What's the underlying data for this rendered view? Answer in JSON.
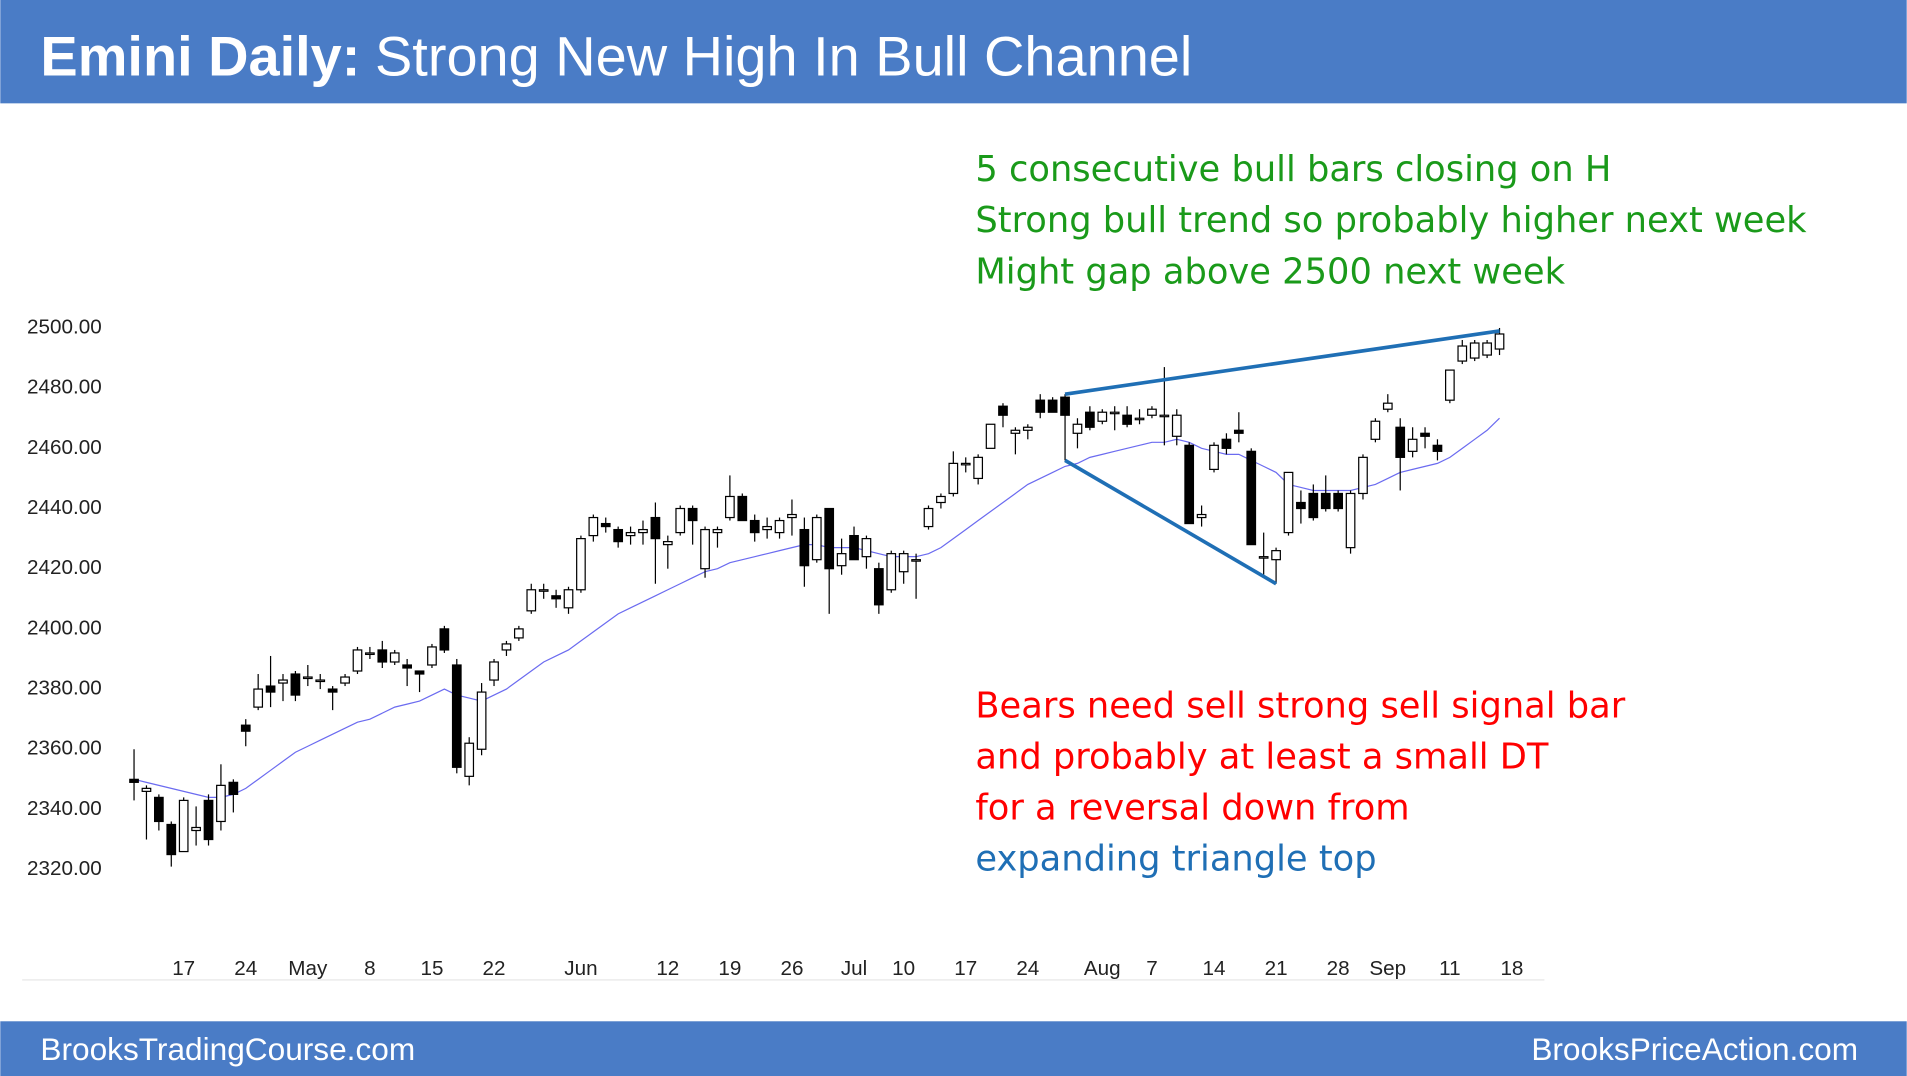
{
  "chart_data": {
    "type": "candlestick",
    "title": "Emini Daily:",
    "subtitle": "Strong New High In Bull Channel",
    "footer_left": "BrooksTradingCourse.com",
    "footer_right": "BrooksPriceAction.com",
    "notes_bull": {
      "color": "#1a9a1a",
      "lines": [
        "5 consecutive bull bars closing on H",
        "Strong bull trend so probably higher next week",
        "Might gap above 2500 next week"
      ]
    },
    "notes_bear": {
      "color": "#ff0000",
      "lines": [
        "Bears need sell strong sell signal bar",
        "and probably at least a small DT",
        "for a reversal down from"
      ]
    },
    "pattern_label": {
      "color": "#1f6fb5",
      "text": "expanding triangle top"
    },
    "ylim": [
      2310,
      2510
    ],
    "yticks": [
      {
        "value": 2320,
        "label": "2320.00"
      },
      {
        "value": 2340,
        "label": "2340.00"
      },
      {
        "value": 2360,
        "label": "2360.00"
      },
      {
        "value": 2380,
        "label": "2380.00"
      },
      {
        "value": 2400,
        "label": "2400.00"
      },
      {
        "value": 2420,
        "label": "2420.00"
      },
      {
        "value": 2440,
        "label": "2440.00"
      },
      {
        "value": 2460,
        "label": "2460.00"
      },
      {
        "value": 2480,
        "label": "2480.00"
      },
      {
        "value": 2500,
        "label": "2500.00"
      }
    ],
    "categories": [
      null,
      null,
      null,
      null,
      "17",
      null,
      null,
      null,
      null,
      "24",
      null,
      null,
      null,
      null,
      "May",
      null,
      null,
      null,
      null,
      "8",
      null,
      null,
      null,
      null,
      "15",
      null,
      null,
      null,
      null,
      "22",
      null,
      null,
      null,
      null,
      null,
      null,
      "Jun",
      null,
      null,
      null,
      null,
      null,
      null,
      "12",
      null,
      null,
      null,
      null,
      "19",
      null,
      null,
      null,
      null,
      "26",
      null,
      null,
      null,
      null,
      "Jul",
      null,
      null,
      null,
      "10",
      null,
      null,
      null,
      null,
      "17",
      null,
      null,
      null,
      null,
      "24",
      null,
      null,
      null,
      null,
      null,
      "Aug",
      null,
      null,
      null,
      "7",
      null,
      null,
      null,
      null,
      "14",
      null,
      null,
      null,
      null,
      "21",
      null,
      null,
      null,
      null,
      "28",
      null,
      null,
      null,
      "Sep",
      null,
      null,
      null,
      null,
      "11",
      null,
      null,
      null,
      null,
      "18"
    ],
    "open": [
      2350,
      2346,
      2344,
      2335,
      2326,
      2333,
      2343,
      2336,
      2349,
      2368,
      2374,
      2381,
      2382,
      2385,
      2384,
      2383,
      2380,
      2382,
      2386,
      2392,
      2393,
      2389,
      2388,
      2386,
      2388,
      2400,
      2388,
      2351,
      2360,
      2383,
      2393,
      2397,
      2406,
      2413,
      2411,
      2407,
      2413,
      2431,
      2435,
      2433,
      2431,
      2432,
      2437,
      2428,
      2432,
      2440,
      2420,
      2432,
      2437,
      2444,
      2436,
      2433,
      2432,
      2437,
      2433,
      2423,
      2440,
      2421,
      2431,
      2424,
      2420,
      2413,
      2419,
      2423,
      2434,
      2442,
      2445,
      2455,
      2450,
      2460,
      2474,
      2465,
      2466,
      2476,
      2476,
      2477,
      2465,
      2472,
      2469,
      2472,
      2471,
      2470,
      2471,
      2471,
      2464,
      2461,
      2437,
      2453,
      2463,
      2466,
      2459,
      2424,
      2423,
      2432,
      2442,
      2445,
      2445,
      2445,
      2427,
      2445,
      2463,
      2473,
      2467,
      2459,
      2465,
      2461,
      2476,
      2489,
      2490,
      2491,
      2493,
      null
    ],
    "high": [
      2360,
      2348,
      2345,
      2336,
      2344,
      2341,
      2345,
      2355,
      2350,
      2370,
      2385,
      2391,
      2385,
      2386,
      2388,
      2385,
      2381,
      2385,
      2394,
      2394,
      2396,
      2393,
      2390,
      2386,
      2395,
      2401,
      2390,
      2364,
      2382,
      2390,
      2396,
      2401,
      2415,
      2415,
      2413,
      2414,
      2431,
      2438,
      2437,
      2434,
      2434,
      2436,
      2442,
      2431,
      2441,
      2441,
      2434,
      2434,
      2451,
      2445,
      2438,
      2437,
      2437,
      2443,
      2437,
      2438,
      2440,
      2430,
      2434,
      2431,
      2422,
      2426,
      2426,
      2425,
      2441,
      2445,
      2459,
      2457,
      2458,
      2468,
      2475,
      2467,
      2468,
      2478,
      2477,
      2478,
      2470,
      2474,
      2473,
      2474,
      2474,
      2473,
      2474,
      2487,
      2473,
      2462,
      2441,
      2462,
      2465,
      2472,
      2460,
      2432,
      2427,
      2452,
      2446,
      2448,
      2451,
      2446,
      2446,
      2458,
      2470,
      2478,
      2470,
      2467,
      2467,
      2463,
      2486,
      2496,
      2496,
      2496,
      2500,
      null
    ],
    "low": [
      2343,
      2330,
      2333,
      2321,
      2326,
      2328,
      2328,
      2333,
      2339,
      2361,
      2373,
      2374,
      2376,
      2376,
      2381,
      2380,
      2373,
      2381,
      2385,
      2390,
      2387,
      2388,
      2381,
      2379,
      2387,
      2392,
      2352,
      2348,
      2358,
      2381,
      2391,
      2396,
      2405,
      2410,
      2407,
      2405,
      2412,
      2429,
      2432,
      2427,
      2428,
      2428,
      2415,
      2420,
      2431,
      2428,
      2417,
      2427,
      2436,
      2436,
      2429,
      2430,
      2430,
      2431,
      2414,
      2422,
      2405,
      2418,
      2423,
      2420,
      2405,
      2412,
      2415,
      2410,
      2433,
      2440,
      2444,
      2452,
      2448,
      2460,
      2467,
      2458,
      2463,
      2470,
      2472,
      2456,
      2460,
      2466,
      2468,
      2466,
      2467,
      2468,
      2470,
      2461,
      2461,
      2435,
      2434,
      2452,
      2458,
      2462,
      2428,
      2418,
      2415,
      2431,
      2435,
      2436,
      2439,
      2439,
      2425,
      2443,
      2462,
      2472,
      2446,
      2457,
      2460,
      2456,
      2475,
      2488,
      2489,
      2490,
      2491,
      null
    ],
    "close": [
      2349,
      2347,
      2336,
      2325,
      2343,
      2334,
      2330,
      2348,
      2345,
      2366,
      2380,
      2379,
      2383,
      2378,
      2384,
      2383,
      2379,
      2384,
      2393,
      2392,
      2389,
      2392,
      2387,
      2385,
      2394,
      2393,
      2354,
      2362,
      2379,
      2389,
      2395,
      2400,
      2413,
      2413,
      2410,
      2413,
      2430,
      2437,
      2434,
      2429,
      2432,
      2433,
      2430,
      2429,
      2440,
      2436,
      2433,
      2433,
      2444,
      2436,
      2432,
      2434,
      2436,
      2438,
      2421,
      2437,
      2420,
      2425,
      2423,
      2430,
      2408,
      2425,
      2425,
      2423,
      2440,
      2444,
      2455,
      2455,
      2457,
      2468,
      2471,
      2466,
      2467,
      2472,
      2472,
      2471,
      2468,
      2467,
      2472,
      2472,
      2468,
      2470,
      2473,
      2471,
      2471,
      2435,
      2438,
      2461,
      2460,
      2465,
      2428,
      2424,
      2426,
      2452,
      2440,
      2437,
      2440,
      2440,
      2445,
      2457,
      2469,
      2475,
      2457,
      2463,
      2464,
      2459,
      2486,
      2494,
      2495,
      2495,
      2498,
      null
    ],
    "ma": {
      "color": "#6b6bf0",
      "values": [
        2350,
        2349,
        2348,
        2347,
        2346,
        2345,
        2344,
        2344,
        2345,
        2347,
        2350,
        2353,
        2356,
        2359,
        2361,
        2363,
        2365,
        2367,
        2369,
        2370,
        2372,
        2374,
        2375,
        2376,
        2378,
        2380,
        2378,
        2377,
        2376,
        2378,
        2380,
        2383,
        2386,
        2389,
        2391,
        2393,
        2396,
        2399,
        2402,
        2405,
        2407,
        2409,
        2411,
        2413,
        2415,
        2417,
        2419,
        2420,
        2422,
        2423,
        2424,
        2425,
        2426,
        2427,
        2428,
        2428,
        2427,
        2427,
        2427,
        2426,
        2425,
        2424,
        2424,
        2424,
        2425,
        2427,
        2430,
        2433,
        2436,
        2439,
        2442,
        2445,
        2448,
        2450,
        2452,
        2454,
        2455,
        2457,
        2458,
        2459,
        2460,
        2461,
        2462,
        2462,
        2463,
        2462,
        2460,
        2459,
        2458,
        2458,
        2456,
        2454,
        2452,
        2448,
        2447,
        2446,
        2446,
        2446,
        2446,
        2447,
        2448,
        2450,
        2452,
        2453,
        2454,
        2455,
        2457,
        2460,
        2463,
        2466,
        2470,
        null
      ]
    },
    "trendlines": [
      {
        "color": "#1f6fb5",
        "points": [
          [
            75,
            2478
          ],
          [
            110,
            2499
          ]
        ]
      },
      {
        "color": "#1f6fb5",
        "points": [
          [
            75,
            2456
          ],
          [
            92,
            2415
          ]
        ]
      }
    ]
  }
}
